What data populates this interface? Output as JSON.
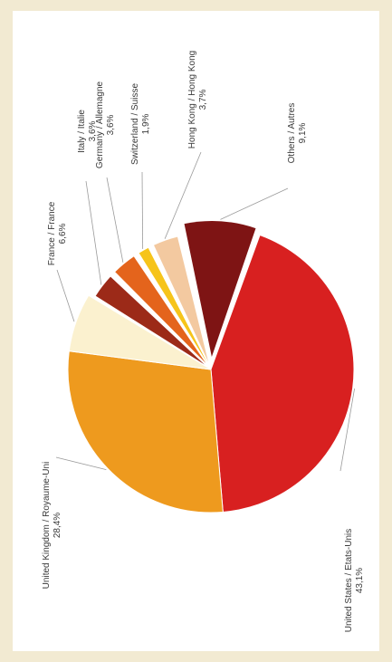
{
  "colors": {
    "background": "#f2ead2",
    "panel": "#ffffff",
    "text": "#3a3a3a"
  },
  "chart_data": {
    "type": "pie",
    "orientation": "rotated-90-clockwise",
    "legend": "none",
    "slices": [
      {
        "label": "United States / Etats-Unis",
        "value_label": "43,1%",
        "value": 43.1,
        "color": "#d82020",
        "exploded": false
      },
      {
        "label": "United Kingdom / Royaume-Uni",
        "value_label": "28,4%",
        "value": 28.4,
        "color": "#ee9a1e",
        "exploded": false
      },
      {
        "label": "France / France",
        "value_label": "6,6%",
        "value": 6.6,
        "color": "#fbf1cf",
        "exploded": false
      },
      {
        "label": "Italy / Italie",
        "value_label": "3,6%",
        "value": 3.6,
        "color": "#9c2a18",
        "exploded": true
      },
      {
        "label": "Germany / Allemagne",
        "value_label": "3,6%",
        "value": 3.6,
        "color": "#e4641c",
        "exploded": true
      },
      {
        "label": "Switzerland / Suisse",
        "value_label": "1,9%",
        "value": 1.9,
        "color": "#f6c41a",
        "exploded": true
      },
      {
        "label": "Hong Kong / Hong Kong",
        "value_label": "3,7%",
        "value": 3.7,
        "color": "#f3c9a0",
        "exploded": true
      },
      {
        "label": "Others / Autres",
        "value_label": "9,1%",
        "value": 9.1,
        "color": "#7e1414",
        "exploded": true
      }
    ]
  }
}
